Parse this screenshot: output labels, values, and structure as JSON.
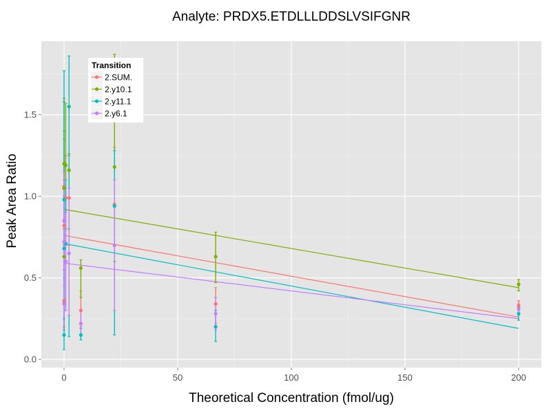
{
  "chart_data": {
    "type": "scatter",
    "title": "Analyte: PRDX5.ETDLLLDDSLVSIFGNR",
    "xlabel": "Theoretical Concentration (fmol/ug)",
    "ylabel": "Peak Area Ratio",
    "xlim": [
      -10,
      210
    ],
    "ylim": [
      -0.05,
      1.95
    ],
    "x_ticks": [
      0,
      50,
      100,
      150,
      200
    ],
    "y_ticks": [
      0.0,
      0.5,
      1.0,
      1.5
    ],
    "x_tick_labels": [
      "0",
      "50",
      "100",
      "150",
      "200"
    ],
    "y_tick_labels": [
      "0.0",
      "0.5",
      "1.0",
      "1.5"
    ],
    "grid": true,
    "legend": {
      "title": "Transition",
      "position": "top-left"
    },
    "series": [
      {
        "name": "2.SUM.",
        "color": "#F8766D",
        "fit": {
          "x0": 0,
          "y0": 0.76,
          "x1": 200,
          "y1": 0.26
        },
        "points": [
          {
            "x": 0,
            "y": 0.82,
            "lo": 0.5,
            "hi": 1.1
          },
          {
            "x": 0,
            "y": 0.36,
            "lo": 0.18,
            "hi": 0.55
          },
          {
            "x": 0,
            "y": 1.06,
            "lo": 0.8,
            "hi": 1.35
          },
          {
            "x": 0.74,
            "y": 0.99,
            "lo": 0.7,
            "hi": 1.25
          },
          {
            "x": 2.2,
            "y": 0.99,
            "lo": 0.7,
            "hi": 1.25
          },
          {
            "x": 7.4,
            "y": 0.3,
            "lo": 0.2,
            "hi": 0.42
          },
          {
            "x": 22.2,
            "y": 0.95,
            "lo": 0.6,
            "hi": 1.3
          },
          {
            "x": 66.7,
            "y": 0.34,
            "lo": 0.22,
            "hi": 0.44
          },
          {
            "x": 200,
            "y": 0.33,
            "lo": 0.3,
            "hi": 0.36
          }
        ]
      },
      {
        "name": "2.y10.1",
        "color": "#7CAE00",
        "fit": {
          "x0": 0,
          "y0": 0.92,
          "x1": 200,
          "y1": 0.44
        },
        "points": [
          {
            "x": 0,
            "y": 1.2,
            "lo": 0.85,
            "hi": 1.58
          },
          {
            "x": 0,
            "y": 0.63,
            "lo": 0.2,
            "hi": 1.6
          },
          {
            "x": 0,
            "y": 1.05,
            "lo": 0.7,
            "hi": 1.4
          },
          {
            "x": 0.74,
            "y": 1.19,
            "lo": 0.8,
            "hi": 1.57
          },
          {
            "x": 2.2,
            "y": 1.16,
            "lo": 0.8,
            "hi": 1.26
          },
          {
            "x": 7.4,
            "y": 0.56,
            "lo": 0.38,
            "hi": 0.61
          },
          {
            "x": 22.2,
            "y": 1.18,
            "lo": 0.6,
            "hi": 1.87
          },
          {
            "x": 66.7,
            "y": 0.63,
            "lo": 0.47,
            "hi": 0.78
          },
          {
            "x": 200,
            "y": 0.46,
            "lo": 0.42,
            "hi": 0.49
          }
        ]
      },
      {
        "name": "2.y11.1",
        "color": "#00BFC4",
        "fit": {
          "x0": 0,
          "y0": 0.71,
          "x1": 200,
          "y1": 0.19
        },
        "points": [
          {
            "x": 0,
            "y": 0.15,
            "lo": 0.06,
            "hi": 0.25
          },
          {
            "x": 0,
            "y": 0.68,
            "lo": 0.35,
            "hi": 1.0
          },
          {
            "x": 0,
            "y": 0.98,
            "lo": 0.2,
            "hi": 1.77
          },
          {
            "x": 0.74,
            "y": 0.71,
            "lo": 0.3,
            "hi": 1.1
          },
          {
            "x": 2.2,
            "y": 1.55,
            "lo": 0.14,
            "hi": 1.86
          },
          {
            "x": 7.4,
            "y": 0.15,
            "lo": 0.12,
            "hi": 0.19
          },
          {
            "x": 22.2,
            "y": 0.94,
            "lo": 0.15,
            "hi": 1.28
          },
          {
            "x": 66.7,
            "y": 0.2,
            "lo": 0.11,
            "hi": 0.3
          },
          {
            "x": 200,
            "y": 0.28,
            "lo": 0.24,
            "hi": 0.32
          }
        ]
      },
      {
        "name": "2.y6.1",
        "color": "#C77CFF",
        "fit": {
          "x0": 0,
          "y0": 0.59,
          "x1": 200,
          "y1": 0.25
        },
        "points": [
          {
            "x": 0,
            "y": 0.85,
            "lo": 0.55,
            "hi": 1.15
          },
          {
            "x": 0,
            "y": 0.72,
            "lo": 0.45,
            "hi": 1.0
          },
          {
            "x": 0,
            "y": 0.34,
            "lo": 0.2,
            "hi": 0.5
          },
          {
            "x": 0.74,
            "y": 0.6,
            "lo": 0.3,
            "hi": 0.9
          },
          {
            "x": 2.2,
            "y": 0.65,
            "lo": 0.27,
            "hi": 1.05
          },
          {
            "x": 7.4,
            "y": 0.22,
            "lo": 0.15,
            "hi": 0.3
          },
          {
            "x": 22.2,
            "y": 0.7,
            "lo": 0.3,
            "hi": 1.1
          },
          {
            "x": 66.7,
            "y": 0.28,
            "lo": 0.18,
            "hi": 0.38
          },
          {
            "x": 200,
            "y": 0.31,
            "lo": 0.28,
            "hi": 0.34
          }
        ]
      }
    ]
  }
}
